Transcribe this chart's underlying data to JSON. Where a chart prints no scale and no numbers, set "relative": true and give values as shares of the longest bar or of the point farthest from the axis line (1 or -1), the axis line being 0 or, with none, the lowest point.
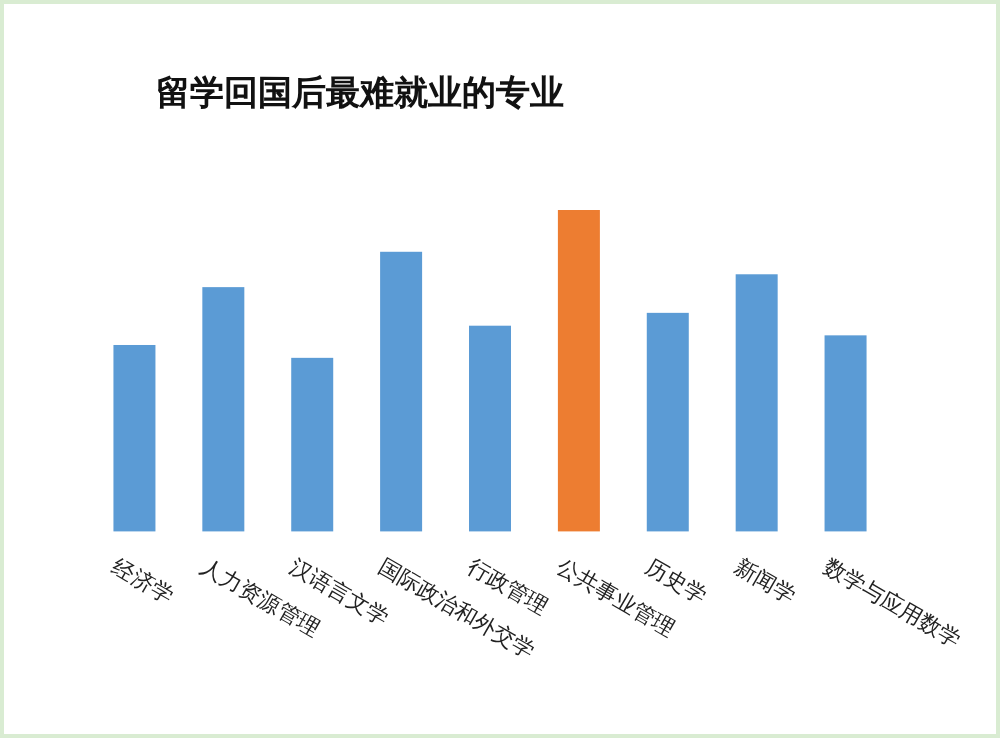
{
  "chart_data": {
    "type": "bar",
    "title": "留学回国后最难就业的专业",
    "relative": true,
    "categories": [
      "经济学",
      "人力资源管理",
      "汉语言文学",
      "国际政治和外交学",
      "行政管理",
      "公共事业管理",
      "历史学",
      "新闻学",
      "数学与应用数学"
    ],
    "values": [
      0.58,
      0.76,
      0.54,
      0.87,
      0.64,
      1,
      0.68,
      0.8,
      0.61
    ],
    "colors": [
      "#5b9bd5",
      "#5b9bd5",
      "#5b9bd5",
      "#5b9bd5",
      "#5b9bd5",
      "#ed7d31",
      "#5b9bd5",
      "#5b9bd5",
      "#5b9bd5"
    ]
  }
}
